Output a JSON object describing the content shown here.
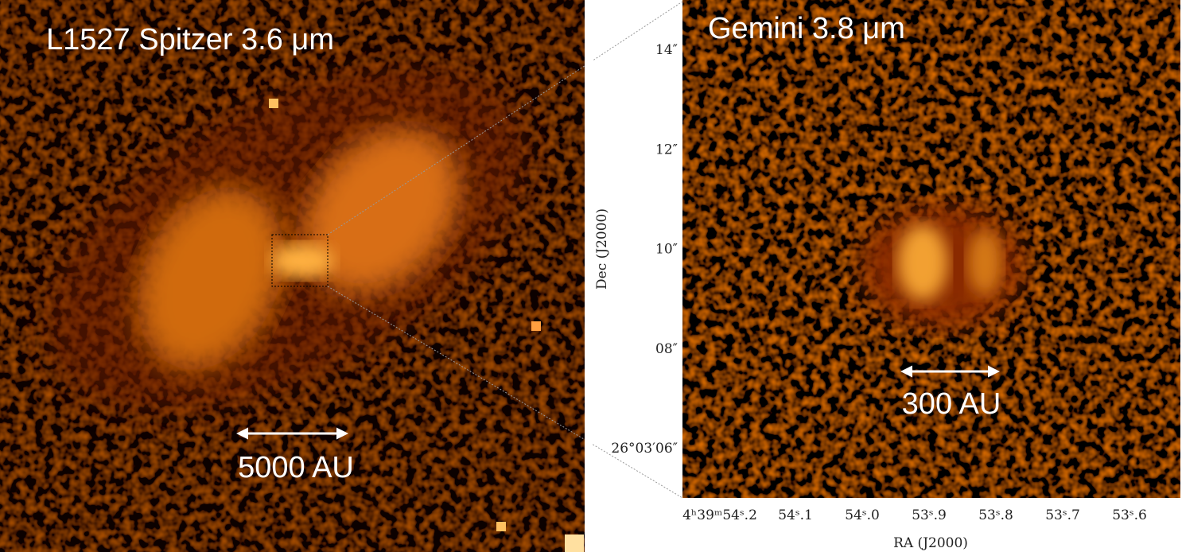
{
  "left_panel": {
    "title": "L1527 Spitzer 3.6 μm",
    "scale_label": "5000 AU"
  },
  "right_panel": {
    "title": "Gemini 3.8 μm",
    "scale_label": "300 AU",
    "y_axis": {
      "label": "Dec  (J2000)",
      "ticks": [
        "14″",
        "12″",
        "10″",
        "08″",
        "26°03′06″"
      ]
    },
    "x_axis": {
      "label": "RA (J2000)",
      "ticks": [
        "4ʰ39ᵐ54ˢ.2",
        "54ˢ.1",
        "54ˢ.0",
        "53ˢ.9",
        "53ˢ.8",
        "53ˢ.7",
        "53ˢ.6"
      ]
    }
  }
}
